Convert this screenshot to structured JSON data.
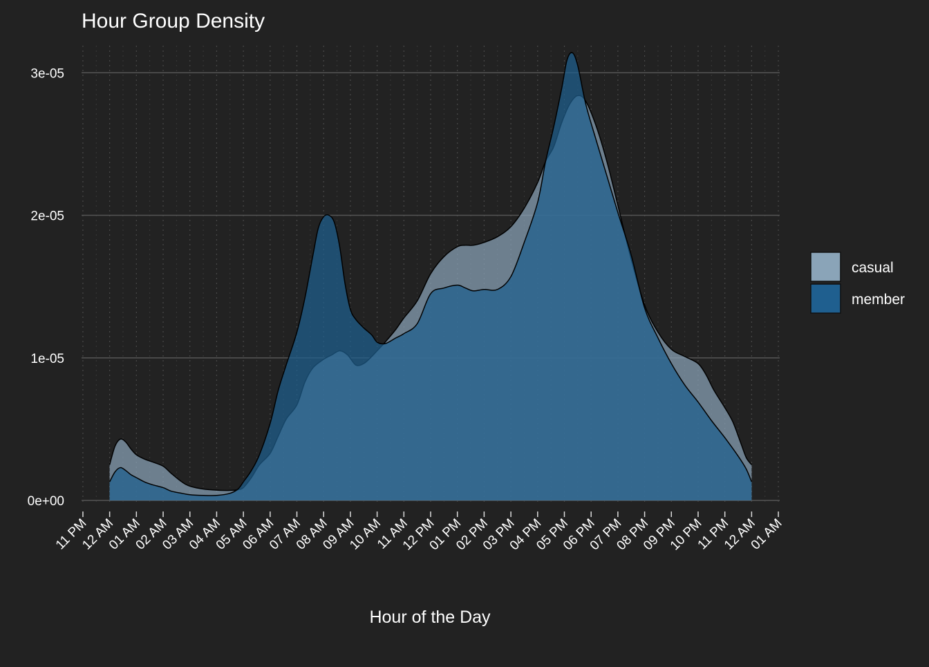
{
  "chart_data": {
    "type": "area",
    "title": "Hour Group Density",
    "xlabel": "Hour of the Day",
    "ylabel": "",
    "ylim": [
      0,
      3.2e-05
    ],
    "y_ticks": [
      0,
      1e-05,
      2e-05,
      3e-05
    ],
    "y_tick_labels": [
      "0e+00",
      "1e-05",
      "2e-05",
      "3e-05"
    ],
    "x_tick_labels": [
      "11 PM",
      "12 AM",
      "01 AM",
      "02 AM",
      "03 AM",
      "04 AM",
      "05 AM",
      "06 AM",
      "07 AM",
      "08 AM",
      "09 AM",
      "10 AM",
      "11 AM",
      "12 PM",
      "01 PM",
      "02 PM",
      "03 PM",
      "04 PM",
      "05 PM",
      "06 PM",
      "07 PM",
      "08 PM",
      "09 PM",
      "10 PM",
      "11 PM",
      "12 AM",
      "01 AM"
    ],
    "x_tick_hours": [
      -1,
      0,
      1,
      2,
      3,
      4,
      5,
      6,
      7,
      8,
      9,
      10,
      11,
      12,
      13,
      14,
      15,
      16,
      17,
      18,
      19,
      20,
      21,
      22,
      23,
      24,
      25
    ],
    "xlim_hours": [
      -1.05,
      25.05
    ],
    "grid": true,
    "legend_position": "right",
    "series": [
      {
        "name": "casual",
        "color": "#8aa4b8",
        "x": [
          0,
          0.2,
          0.4,
          0.6,
          0.8,
          1.0,
          1.3,
          1.6,
          2.0,
          2.3,
          2.7,
          3.0,
          3.5,
          4.0,
          4.5,
          4.8,
          5.0,
          5.3,
          5.6,
          6.0,
          6.3,
          6.6,
          7.0,
          7.3,
          7.6,
          8.0,
          8.3,
          8.6,
          8.9,
          9.2,
          9.5,
          9.8,
          10.0,
          10.3,
          10.7,
          11.0,
          11.5,
          12.0,
          12.5,
          13.0,
          13.3,
          13.6,
          14.0,
          14.5,
          15.0,
          15.5,
          16.0,
          16.3,
          16.6,
          16.9,
          17.2,
          17.5,
          17.8,
          18.2,
          18.6,
          19.0,
          19.5,
          20.0,
          20.5,
          21.0,
          21.5,
          22.0,
          22.3,
          22.6,
          23.0,
          23.3,
          23.6,
          23.8,
          24.0
        ],
        "y": [
          2.5e-06,
          3.8e-06,
          4.3e-06,
          4.1e-06,
          3.6e-06,
          3.2e-06,
          2.9e-06,
          2.7e-06,
          2.4e-06,
          1.9e-06,
          1.3e-06,
          1e-06,
          8e-07,
          7.2e-07,
          7e-07,
          7.5e-07,
          9e-07,
          1.6e-06,
          2.5e-06,
          3.3e-06,
          4.5e-06,
          5.7e-06,
          6.7e-06,
          8.3e-06,
          9.3e-06,
          9.9e-06,
          1.02e-05,
          1.05e-05,
          1.02e-05,
          9.5e-06,
          9.6e-06,
          1.01e-05,
          1.05e-05,
          1.11e-05,
          1.2e-05,
          1.28e-05,
          1.4e-05,
          1.59e-05,
          1.71e-05,
          1.78e-05,
          1.79e-05,
          1.79e-05,
          1.81e-05,
          1.85e-05,
          1.92e-05,
          2.05e-05,
          2.23e-05,
          2.38e-05,
          2.48e-05,
          2.65e-05,
          2.78e-05,
          2.84e-05,
          2.8e-05,
          2.62e-05,
          2.37e-05,
          2.07e-05,
          1.69e-05,
          1.37e-05,
          1.18e-05,
          1.06e-05,
          1.01e-05,
          9.6e-06,
          8.8e-06,
          7.7e-06,
          6.5e-06,
          5.5e-06,
          4e-06,
          3e-06,
          2.5e-06
        ]
      },
      {
        "name": "member",
        "color": "#1f5f8f",
        "x": [
          0,
          0.2,
          0.4,
          0.6,
          0.8,
          1.0,
          1.3,
          1.6,
          2.0,
          2.3,
          2.7,
          3.0,
          3.5,
          4.0,
          4.5,
          4.8,
          5.0,
          5.3,
          5.6,
          6.0,
          6.3,
          6.6,
          7.0,
          7.3,
          7.6,
          7.8,
          8.0,
          8.2,
          8.4,
          8.6,
          8.8,
          9.0,
          9.2,
          9.5,
          9.8,
          10.0,
          10.3,
          10.7,
          11.0,
          11.5,
          12.0,
          12.5,
          13.0,
          13.3,
          13.6,
          14.0,
          14.5,
          15.0,
          15.5,
          16.0,
          16.3,
          16.6,
          16.9,
          17.1,
          17.3,
          17.5,
          17.8,
          18.2,
          18.6,
          19.0,
          19.5,
          20.0,
          20.5,
          21.0,
          21.5,
          22.0,
          22.5,
          23.0,
          23.5,
          23.8,
          24.0
        ],
        "y": [
          1.3e-06,
          2e-06,
          2.3e-06,
          2.1e-06,
          1.8e-06,
          1.6e-06,
          1.3e-06,
          1.1e-06,
          9e-07,
          6.5e-07,
          5e-07,
          4e-07,
          3.5e-07,
          3.5e-07,
          5e-07,
          8e-07,
          1.3e-06,
          2.1e-06,
          3.2e-06,
          5.4e-06,
          7.7e-06,
          9.5e-06,
          1.18e-05,
          1.42e-05,
          1.72e-05,
          1.91e-05,
          1.99e-05,
          2e-05,
          1.95e-05,
          1.78e-05,
          1.52e-05,
          1.34e-05,
          1.27e-05,
          1.21e-05,
          1.16e-05,
          1.11e-05,
          1.1e-05,
          1.14e-05,
          1.17e-05,
          1.24e-05,
          1.45e-05,
          1.49e-05,
          1.51e-05,
          1.49e-05,
          1.47e-05,
          1.48e-05,
          1.48e-05,
          1.57e-05,
          1.81e-05,
          2.09e-05,
          2.38e-05,
          2.62e-05,
          2.89e-05,
          3.09e-05,
          3.14e-05,
          3.05e-05,
          2.78e-05,
          2.52e-05,
          2.27e-05,
          2.02e-05,
          1.72e-05,
          1.35e-05,
          1.14e-05,
          9.6e-06,
          8.1e-06,
          6.9e-06,
          5.6e-06,
          4.4e-06,
          3.1e-06,
          2.2e-06,
          1.3e-06
        ]
      }
    ]
  }
}
